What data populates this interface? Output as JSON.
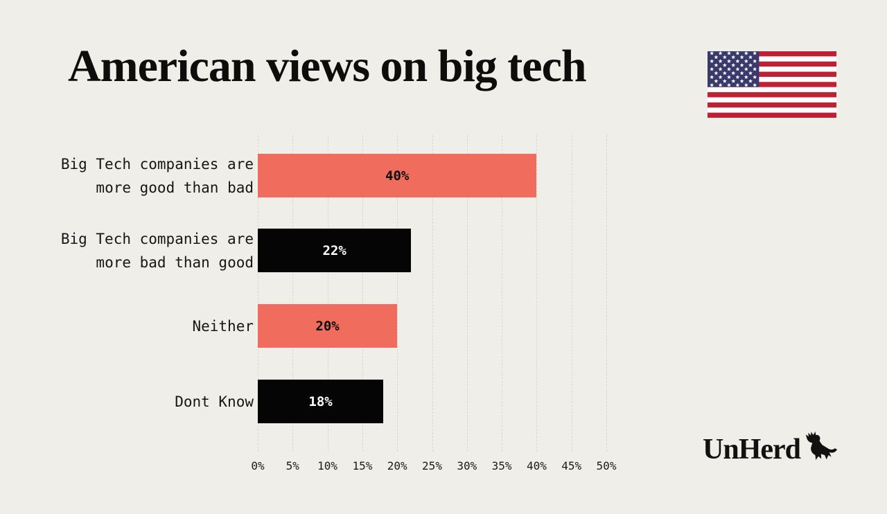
{
  "page": {
    "background": "#F0EEE9"
  },
  "header": {
    "title": "American views on big tech"
  },
  "branding": {
    "logo_text": "UnHerd",
    "flag_colors": {
      "red": "#BF2033",
      "white": "#FFFFFF",
      "blue": "#393A6B"
    }
  },
  "chart_data": {
    "type": "bar",
    "orientation": "horizontal",
    "title": "American views on big tech",
    "categories": [
      "Big Tech companies are\nmore good than bad",
      "Big Tech companies are\nmore bad than good",
      "Neither",
      "Dont Know"
    ],
    "values": [
      40,
      22,
      20,
      18
    ],
    "value_labels": [
      "40%",
      "22%",
      "20%",
      "18%"
    ],
    "bar_colors": [
      "#F06C5C",
      "#050505",
      "#F06C5C",
      "#050505"
    ],
    "value_label_colors": [
      "#0B0B0B",
      "#FFFFFF",
      "#0B0B0B",
      "#FFFFFF"
    ],
    "x_ticks": [
      "0%",
      "5%",
      "10%",
      "15%",
      "20%",
      "25%",
      "30%",
      "35%",
      "40%",
      "45%",
      "50%"
    ],
    "xlim": [
      0,
      50
    ],
    "xlabel": "",
    "ylabel": "",
    "grid": true,
    "legend": false
  }
}
